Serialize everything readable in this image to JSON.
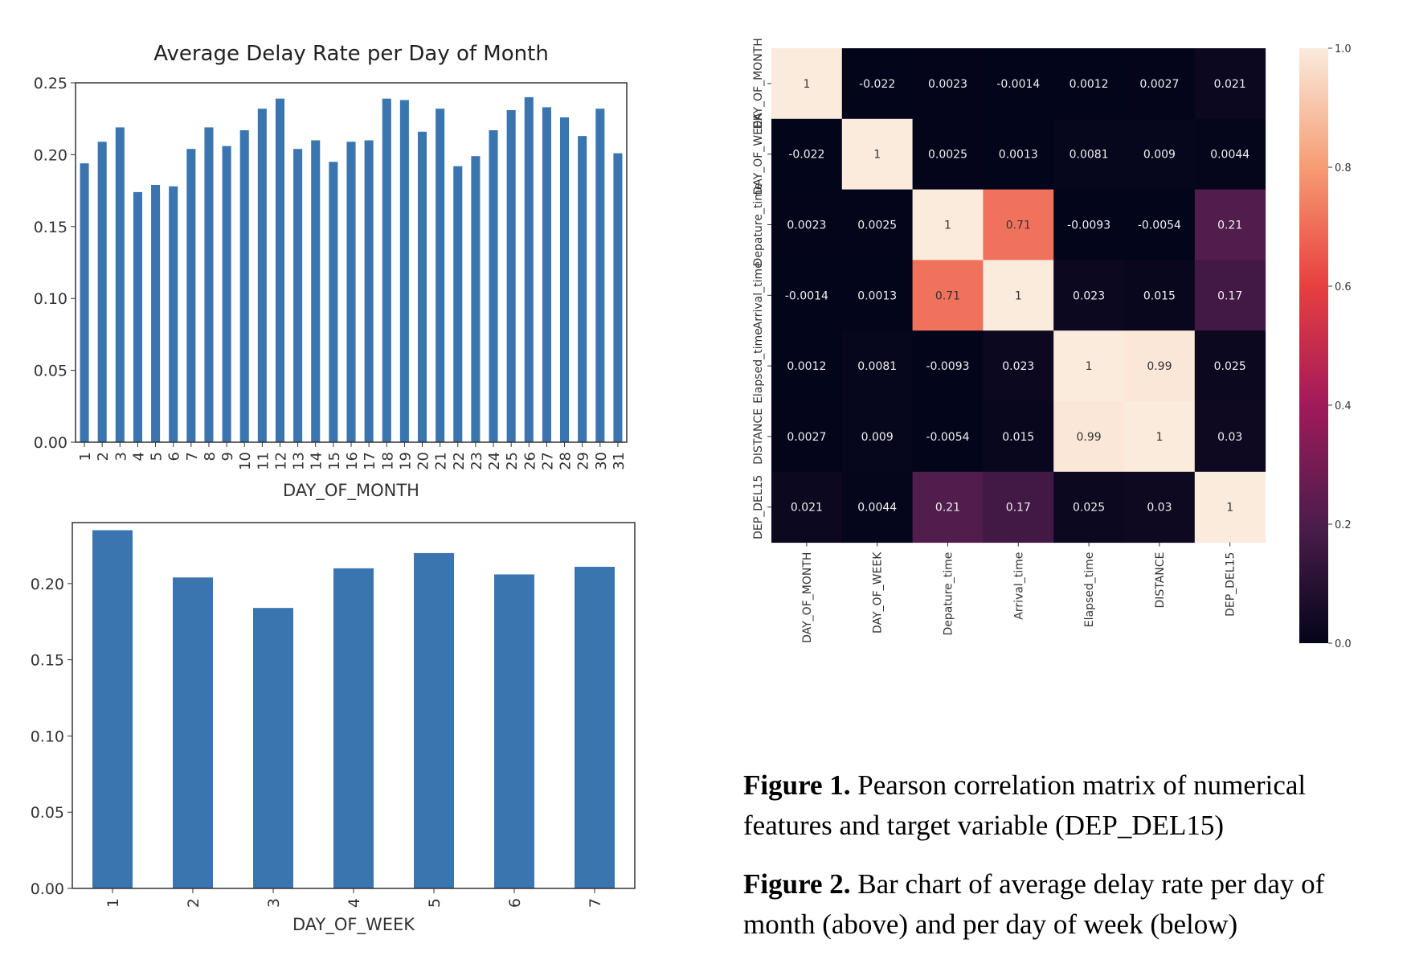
{
  "chart_data": [
    {
      "type": "bar",
      "title": "Average Delay Rate per Day of Month",
      "xlabel": "DAY_OF_MONTH",
      "ylabel": "",
      "ylim": [
        0,
        0.25
      ],
      "yticks": [
        "0.00",
        "0.05",
        "0.10",
        "0.15",
        "0.20",
        "0.25"
      ],
      "categories": [
        "1",
        "2",
        "3",
        "4",
        "5",
        "6",
        "7",
        "8",
        "9",
        "10",
        "11",
        "12",
        "13",
        "14",
        "15",
        "16",
        "17",
        "18",
        "19",
        "20",
        "21",
        "22",
        "23",
        "24",
        "25",
        "26",
        "27",
        "28",
        "29",
        "30",
        "31"
      ],
      "values": [
        0.194,
        0.209,
        0.219,
        0.174,
        0.179,
        0.178,
        0.204,
        0.219,
        0.206,
        0.217,
        0.232,
        0.239,
        0.204,
        0.21,
        0.195,
        0.209,
        0.21,
        0.239,
        0.238,
        0.216,
        0.232,
        0.192,
        0.199,
        0.217,
        0.231,
        0.24,
        0.233,
        0.226,
        0.213,
        0.232,
        0.201
      ],
      "color": "#3a75b0",
      "grid": false
    },
    {
      "type": "bar",
      "title": "",
      "xlabel": "DAY_OF_WEEK",
      "ylabel": "",
      "ylim": [
        0,
        0.24
      ],
      "yticks": [
        "0.00",
        "0.05",
        "0.10",
        "0.15",
        "0.20"
      ],
      "categories": [
        "1",
        "2",
        "3",
        "4",
        "5",
        "6",
        "7"
      ],
      "values": [
        0.235,
        0.204,
        0.184,
        0.21,
        0.22,
        0.206,
        0.211
      ],
      "color": "#3a75b0",
      "grid": false
    },
    {
      "type": "heatmap",
      "title": "",
      "labels": [
        "DAY_OF_MONTH",
        "DAY_OF_WEEK",
        "Depature_time",
        "Arrival_time",
        "Elapsed_time",
        "DISTANCE",
        "DEP_DEL15"
      ],
      "values": [
        [
          1,
          -0.022,
          0.0023,
          -0.0014,
          0.0012,
          0.0027,
          0.021
        ],
        [
          -0.022,
          1,
          0.0025,
          0.0013,
          0.0081,
          0.009,
          0.0044
        ],
        [
          0.0023,
          0.0025,
          1,
          0.71,
          -0.0093,
          -0.0054,
          0.21
        ],
        [
          -0.0014,
          0.0013,
          0.71,
          1,
          0.023,
          0.015,
          0.17
        ],
        [
          0.0012,
          0.0081,
          -0.0093,
          0.023,
          1,
          0.99,
          0.025
        ],
        [
          0.0027,
          0.009,
          -0.0054,
          0.015,
          0.99,
          1,
          0.03
        ],
        [
          0.021,
          0.0044,
          0.21,
          0.17,
          0.025,
          0.03,
          1
        ]
      ],
      "annotations": [
        [
          "1",
          "-0.022",
          "0.0023",
          "-0.0014",
          "0.0012",
          "0.0027",
          "0.021"
        ],
        [
          "-0.022",
          "1",
          "0.0025",
          "0.0013",
          "0.0081",
          "0.009",
          "0.0044"
        ],
        [
          "0.0023",
          "0.0025",
          "1",
          "0.71",
          "-0.0093",
          "-0.0054",
          "0.21"
        ],
        [
          "-0.0014",
          "0.0013",
          "0.71",
          "1",
          "0.023",
          "0.015",
          "0.17"
        ],
        [
          "0.0012",
          "0.0081",
          "-0.0093",
          "0.023",
          "1",
          "0.99",
          "0.025"
        ],
        [
          "0.0027",
          "0.009",
          "-0.0054",
          "0.015",
          "0.99",
          "1",
          "0.03"
        ],
        [
          "0.021",
          "0.0044",
          "0.21",
          "0.17",
          "0.025",
          "0.03",
          "1"
        ]
      ],
      "colorbar": {
        "range": [
          0,
          1
        ],
        "ticks": [
          "0.0",
          "0.2",
          "0.4",
          "0.6",
          "0.8",
          "1.0"
        ],
        "colors": [
          "#03051a",
          "#4c1d4b",
          "#a11a5b",
          "#e83f3f",
          "#f69c73",
          "#faebdd"
        ]
      }
    }
  ],
  "captions": {
    "figure1": {
      "label": "Figure 1.",
      "text": " Pearson correlation matrix of numerical features and target variable (DEP_DEL15)"
    },
    "figure2": {
      "label": "Figure 2.",
      "text": " Bar chart of average delay rate per day of month (above) and per day of week (below)"
    }
  }
}
